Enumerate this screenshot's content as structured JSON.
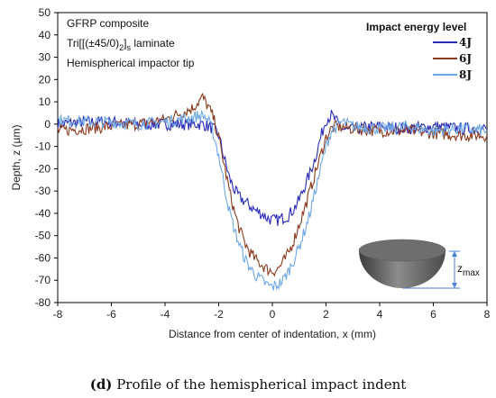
{
  "caption": {
    "letter": "(d)",
    "text": "Profile of the hemispherical impact indent"
  },
  "chart_data": {
    "type": "line",
    "title": "",
    "xlabel": "Distance from center of indentation, x (mm)",
    "ylabel": "Depth, z (µm)",
    "xlim": [
      -8,
      8
    ],
    "ylim": [
      -80,
      50
    ],
    "xticks": [
      -8,
      -6,
      -4,
      -2,
      0,
      2,
      4,
      6,
      8
    ],
    "yticks": [
      50,
      40,
      30,
      20,
      10,
      0,
      -10,
      -20,
      -30,
      -40,
      -50,
      -60,
      -70,
      -80
    ],
    "grid": false,
    "annotations": [
      "GFRP composite",
      "Tri[[(±45/0)",
      "2",
      "]",
      "s",
      " laminate",
      "Hemispherical impactor tip"
    ],
    "legend": {
      "title": "Impact energy level",
      "placement": "top-right"
    },
    "series": [
      {
        "name": "4J",
        "color": "#2a2ab8",
        "x": [
          -8,
          -7,
          -6,
          -5,
          -4,
          -3,
          -2.6,
          -2.2,
          -2.0,
          -1.8,
          -1.6,
          -1.4,
          -1.2,
          -1.0,
          -0.8,
          -0.6,
          -0.4,
          -0.2,
          0,
          0.2,
          0.4,
          0.6,
          0.8,
          1.0,
          1.2,
          1.4,
          1.6,
          1.8,
          2.0,
          2.2,
          2.4,
          2.6,
          2.8,
          3,
          4,
          5,
          6,
          7,
          8
        ],
        "y": [
          0,
          1,
          1,
          0,
          0,
          0,
          0,
          -2,
          -5,
          -15,
          -24,
          -30,
          -33,
          -35,
          -37,
          -39,
          -40,
          -42,
          -43,
          -43,
          -42,
          -41,
          -38,
          -34,
          -28,
          -22,
          -15,
          -6,
          2,
          4,
          1,
          -2,
          -3,
          -2,
          -1,
          -2,
          -1,
          -2,
          -2
        ]
      },
      {
        "name": "6J",
        "color": "#8b3a1e",
        "x": [
          -8,
          -7,
          -6,
          -5,
          -4,
          -3,
          -2.6,
          -2.4,
          -2.2,
          -2.0,
          -1.8,
          -1.6,
          -1.4,
          -1.2,
          -1.0,
          -0.8,
          -0.6,
          -0.4,
          -0.2,
          0,
          0.2,
          0.4,
          0.6,
          0.8,
          1.0,
          1.2,
          1.4,
          1.6,
          1.8,
          2.0,
          2.2,
          2.4,
          3,
          4,
          5,
          6,
          7,
          8
        ],
        "y": [
          -3,
          -2,
          -1,
          0,
          2,
          7,
          12,
          8,
          3,
          -6,
          -18,
          -30,
          -40,
          -48,
          -54,
          -58,
          -61,
          -63,
          -65,
          -66,
          -65,
          -62,
          -58,
          -52,
          -45,
          -38,
          -30,
          -22,
          -14,
          -6,
          -2,
          -1,
          -2,
          -3,
          -3,
          -4,
          -5,
          -5
        ]
      },
      {
        "name": "8J",
        "color": "#6fa8e8",
        "x": [
          -8,
          -7,
          -6,
          -5,
          -4,
          -3,
          -2.6,
          -2.4,
          -2.2,
          -2.0,
          -1.8,
          -1.6,
          -1.4,
          -1.2,
          -1.0,
          -0.8,
          -0.6,
          -0.4,
          -0.2,
          0,
          0.2,
          0.4,
          0.6,
          0.8,
          1.0,
          1.2,
          1.4,
          1.6,
          1.8,
          2.0,
          2.2,
          2.6,
          3,
          4,
          5,
          6,
          7,
          8
        ],
        "y": [
          2,
          1,
          1,
          0,
          1,
          3,
          4,
          2,
          -4,
          -14,
          -27,
          -39,
          -48,
          -55,
          -61,
          -65,
          -68,
          -70,
          -72,
          -73,
          -72,
          -70,
          -66,
          -61,
          -55,
          -48,
          -40,
          -30,
          -20,
          -10,
          -3,
          1,
          -1,
          -2,
          -1,
          -3,
          -2,
          -3
        ]
      }
    ]
  },
  "inset": {
    "label_main": "z",
    "label_sub": "max"
  }
}
